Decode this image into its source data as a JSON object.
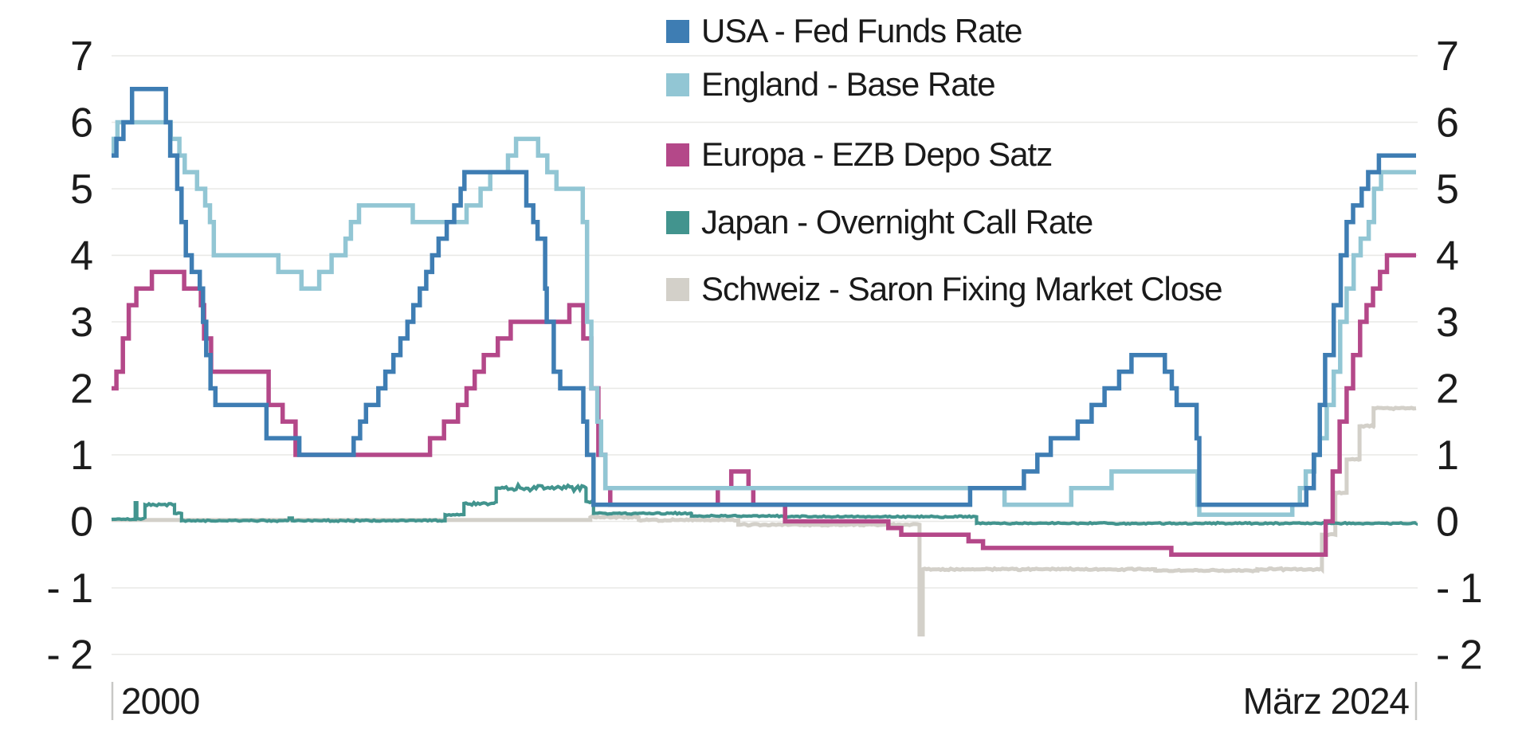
{
  "chart_data": {
    "type": "line",
    "title": "",
    "grid": true,
    "legend_position": "top-center",
    "x_axis": {
      "start_label": "2000",
      "end_label": "März 2024",
      "range": [
        2000,
        2024.25
      ]
    },
    "y_axis": {
      "ticks": [
        7,
        6,
        5,
        4,
        3,
        2,
        1,
        0,
        -1,
        -2
      ],
      "range": [
        -2.6,
        7.4
      ],
      "sides": "both"
    },
    "colors": {
      "background": "#ffffff",
      "gridline": "#e8e8e6",
      "axis_tick": "#c8c8c6",
      "text": "#1c1c1c"
    },
    "series": [
      {
        "name": "USA - Fed Funds Rate",
        "slug": "usa",
        "color": "#3e7db3",
        "width": 5.5,
        "noise": 0,
        "points": [
          [
            2000.0,
            5.5
          ],
          [
            2000.09,
            5.75
          ],
          [
            2000.22,
            6.0
          ],
          [
            2000.38,
            6.5
          ],
          [
            2001.01,
            6.0
          ],
          [
            2001.09,
            5.5
          ],
          [
            2001.22,
            5.0
          ],
          [
            2001.3,
            4.5
          ],
          [
            2001.38,
            4.0
          ],
          [
            2001.49,
            3.75
          ],
          [
            2001.64,
            3.5
          ],
          [
            2001.7,
            3.0
          ],
          [
            2001.76,
            2.5
          ],
          [
            2001.84,
            2.0
          ],
          [
            2001.93,
            1.75
          ],
          [
            2002.88,
            1.25
          ],
          [
            2003.49,
            1.0
          ],
          [
            2004.5,
            1.25
          ],
          [
            2004.62,
            1.5
          ],
          [
            2004.73,
            1.75
          ],
          [
            2004.96,
            2.0
          ],
          [
            2005.09,
            2.25
          ],
          [
            2005.24,
            2.5
          ],
          [
            2005.37,
            2.75
          ],
          [
            2005.5,
            3.0
          ],
          [
            2005.61,
            3.25
          ],
          [
            2005.73,
            3.5
          ],
          [
            2005.85,
            3.75
          ],
          [
            2005.96,
            4.0
          ],
          [
            2006.08,
            4.25
          ],
          [
            2006.23,
            4.5
          ],
          [
            2006.37,
            4.75
          ],
          [
            2006.49,
            5.0
          ],
          [
            2006.56,
            5.25
          ],
          [
            2007.71,
            4.75
          ],
          [
            2007.84,
            4.5
          ],
          [
            2007.92,
            4.25
          ],
          [
            2008.06,
            3.5
          ],
          [
            2008.09,
            3.0
          ],
          [
            2008.22,
            2.25
          ],
          [
            2008.34,
            2.0
          ],
          [
            2008.77,
            1.5
          ],
          [
            2008.84,
            1.0
          ],
          [
            2008.96,
            0.25
          ],
          [
            2015.96,
            0.5
          ],
          [
            2016.96,
            0.75
          ],
          [
            2017.21,
            1.0
          ],
          [
            2017.46,
            1.25
          ],
          [
            2017.96,
            1.5
          ],
          [
            2018.22,
            1.75
          ],
          [
            2018.46,
            2.0
          ],
          [
            2018.73,
            2.25
          ],
          [
            2018.96,
            2.5
          ],
          [
            2019.58,
            2.25
          ],
          [
            2019.71,
            2.0
          ],
          [
            2019.8,
            1.75
          ],
          [
            2020.17,
            1.25
          ],
          [
            2020.22,
            0.25
          ],
          [
            2022.21,
            0.5
          ],
          [
            2022.35,
            1.0
          ],
          [
            2022.46,
            1.75
          ],
          [
            2022.56,
            2.5
          ],
          [
            2022.72,
            3.25
          ],
          [
            2022.85,
            4.0
          ],
          [
            2022.96,
            4.5
          ],
          [
            2023.08,
            4.75
          ],
          [
            2023.24,
            5.0
          ],
          [
            2023.36,
            5.25
          ],
          [
            2023.56,
            5.5
          ],
          [
            2024.25,
            5.5
          ]
        ]
      },
      {
        "name": "England - Base Rate",
        "slug": "england",
        "color": "#92c6d4",
        "width": 5.5,
        "noise": 0,
        "points": [
          [
            2000.0,
            5.5
          ],
          [
            2000.04,
            5.75
          ],
          [
            2000.11,
            6.0
          ],
          [
            2001.1,
            5.75
          ],
          [
            2001.26,
            5.5
          ],
          [
            2001.36,
            5.25
          ],
          [
            2001.59,
            5.0
          ],
          [
            2001.74,
            4.75
          ],
          [
            2001.83,
            4.5
          ],
          [
            2001.9,
            4.0
          ],
          [
            2003.1,
            3.75
          ],
          [
            2003.53,
            3.5
          ],
          [
            2003.86,
            3.75
          ],
          [
            2004.09,
            4.0
          ],
          [
            2004.35,
            4.25
          ],
          [
            2004.45,
            4.5
          ],
          [
            2004.6,
            4.75
          ],
          [
            2005.6,
            4.5
          ],
          [
            2006.6,
            4.75
          ],
          [
            2006.86,
            5.0
          ],
          [
            2007.04,
            5.25
          ],
          [
            2007.37,
            5.5
          ],
          [
            2007.52,
            5.75
          ],
          [
            2007.93,
            5.5
          ],
          [
            2008.1,
            5.25
          ],
          [
            2008.27,
            5.0
          ],
          [
            2008.76,
            4.5
          ],
          [
            2008.84,
            3.0
          ],
          [
            2008.92,
            2.0
          ],
          [
            2009.03,
            1.5
          ],
          [
            2009.1,
            1.0
          ],
          [
            2009.18,
            0.5
          ],
          [
            2016.6,
            0.25
          ],
          [
            2017.84,
            0.5
          ],
          [
            2018.59,
            0.75
          ],
          [
            2020.19,
            0.25
          ],
          [
            2020.22,
            0.1
          ],
          [
            2021.95,
            0.25
          ],
          [
            2022.09,
            0.5
          ],
          [
            2022.2,
            0.75
          ],
          [
            2022.36,
            1.0
          ],
          [
            2022.46,
            1.25
          ],
          [
            2022.59,
            1.75
          ],
          [
            2022.72,
            2.25
          ],
          [
            2022.84,
            3.0
          ],
          [
            2022.96,
            3.5
          ],
          [
            2023.09,
            4.0
          ],
          [
            2023.22,
            4.25
          ],
          [
            2023.37,
            4.5
          ],
          [
            2023.47,
            5.0
          ],
          [
            2023.6,
            5.25
          ],
          [
            2024.25,
            5.25
          ]
        ]
      },
      {
        "name": "Europa - EZB Depo Satz",
        "slug": "europa",
        "color": "#b44889",
        "width": 5.5,
        "noise": 0,
        "points": [
          [
            2000.0,
            2.0
          ],
          [
            2000.09,
            2.25
          ],
          [
            2000.21,
            2.75
          ],
          [
            2000.32,
            3.25
          ],
          [
            2000.46,
            3.5
          ],
          [
            2000.75,
            3.75
          ],
          [
            2001.35,
            3.5
          ],
          [
            2001.66,
            3.25
          ],
          [
            2001.72,
            2.75
          ],
          [
            2001.85,
            2.25
          ],
          [
            2002.92,
            1.75
          ],
          [
            2003.18,
            1.5
          ],
          [
            2003.42,
            1.0
          ],
          [
            2005.92,
            1.25
          ],
          [
            2006.18,
            1.5
          ],
          [
            2006.44,
            1.75
          ],
          [
            2006.6,
            2.0
          ],
          [
            2006.75,
            2.25
          ],
          [
            2006.92,
            2.5
          ],
          [
            2007.18,
            2.75
          ],
          [
            2007.42,
            3.0
          ],
          [
            2008.51,
            3.25
          ],
          [
            2008.77,
            2.75
          ],
          [
            2008.92,
            2.0
          ],
          [
            2009.05,
            1.0
          ],
          [
            2009.18,
            0.5
          ],
          [
            2009.27,
            0.25
          ],
          [
            2011.27,
            0.5
          ],
          [
            2011.52,
            0.75
          ],
          [
            2011.84,
            0.5
          ],
          [
            2011.93,
            0.25
          ],
          [
            2012.52,
            0.0
          ],
          [
            2014.44,
            -0.1
          ],
          [
            2014.68,
            -0.2
          ],
          [
            2015.93,
            -0.3
          ],
          [
            2016.2,
            -0.4
          ],
          [
            2019.7,
            -0.5
          ],
          [
            2022.57,
            0.0
          ],
          [
            2022.7,
            0.75
          ],
          [
            2022.83,
            1.5
          ],
          [
            2022.96,
            2.0
          ],
          [
            2023.08,
            2.5
          ],
          [
            2023.21,
            3.0
          ],
          [
            2023.33,
            3.25
          ],
          [
            2023.45,
            3.5
          ],
          [
            2023.58,
            3.75
          ],
          [
            2023.71,
            4.0
          ],
          [
            2024.25,
            4.0
          ]
        ]
      },
      {
        "name": "Japan - Overnight Call Rate",
        "slug": "japan",
        "color": "#42948e",
        "width": 4.2,
        "noise": 1,
        "noise_from": 2000,
        "points": [
          [
            2000.0,
            0.03
          ],
          [
            2000.44,
            0.28
          ],
          [
            2000.47,
            0.04
          ],
          [
            2000.62,
            0.25
          ],
          [
            2001.17,
            0.12
          ],
          [
            2001.3,
            0.01
          ],
          [
            2003.3,
            0.05
          ],
          [
            2003.36,
            0.01
          ],
          [
            2006.2,
            0.1
          ],
          [
            2006.55,
            0.27
          ],
          [
            2007.15,
            0.5
          ],
          [
            2008.82,
            0.3
          ],
          [
            2008.96,
            0.12
          ],
          [
            2010.78,
            0.08
          ],
          [
            2012.5,
            0.07
          ],
          [
            2016.08,
            -0.03
          ],
          [
            2024.25,
            -0.02
          ]
        ]
      },
      {
        "name": "Schweiz - Saron Fixing Market Close",
        "slug": "schweiz",
        "color": "#d3d0c9",
        "width": 5,
        "noise": 0.016,
        "noise_from": 2008.9,
        "points": [
          [
            2000.0,
            0.02
          ],
          [
            2008.9,
            0.06
          ],
          [
            2009.8,
            0.02
          ],
          [
            2011.65,
            -0.05
          ],
          [
            2015.02,
            -1.7
          ],
          [
            2015.08,
            -0.72
          ],
          [
            2019.4,
            -0.74
          ],
          [
            2021.3,
            -0.72
          ],
          [
            2022.5,
            -0.2
          ],
          [
            2022.75,
            0.43
          ],
          [
            2022.96,
            0.93
          ],
          [
            2023.2,
            1.43
          ],
          [
            2023.46,
            1.7
          ],
          [
            2024.25,
            1.7
          ]
        ]
      }
    ]
  }
}
